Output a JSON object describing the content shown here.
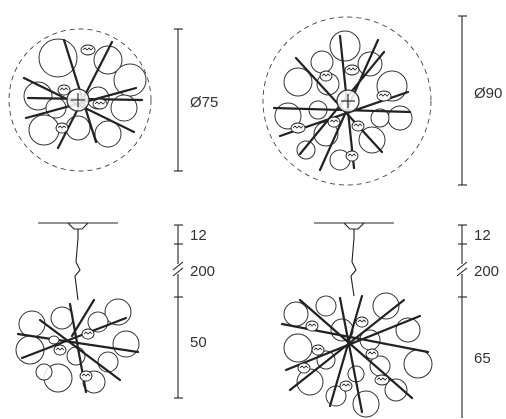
{
  "dimensions": {
    "small_diameter": "Ø75",
    "large_diameter": "Ø90",
    "small_canopy": "12",
    "small_cable": "200",
    "small_body": "50",
    "large_canopy": "12",
    "large_cable": "200",
    "large_body": "65"
  },
  "colors": {
    "line": "#222222",
    "label": "#333333"
  }
}
